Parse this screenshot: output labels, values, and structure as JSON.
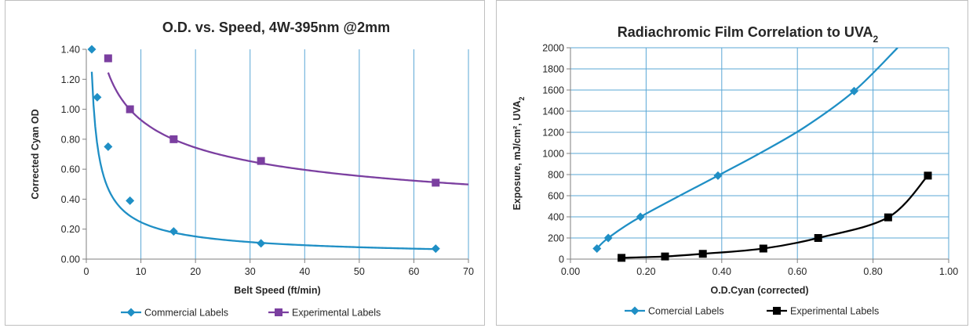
{
  "chart_data": [
    {
      "type": "line",
      "title": "O.D. vs. Speed, 4W-395nm @2mm",
      "xlabel": "Belt Speed (ft/min)",
      "ylabel": "Corrected Cyan OD",
      "xlim": [
        0,
        70
      ],
      "ylim": [
        0,
        1.4
      ],
      "xticks": [
        0,
        10,
        20,
        30,
        40,
        50,
        60,
        70
      ],
      "yticks": [
        0,
        0.2,
        0.4,
        0.6,
        0.8,
        1.0,
        1.2,
        1.4
      ],
      "x_tick_labels": [
        "0",
        "10",
        "20",
        "30",
        "40",
        "50",
        "60",
        "70"
      ],
      "y_tick_labels": [
        "0.00",
        "0.20",
        "0.40",
        "0.60",
        "0.80",
        "1.00",
        "1.20",
        "1.40"
      ],
      "grid": "vertical",
      "legend_position": "bottom",
      "series": [
        {
          "name": "Commercial Labels",
          "color": "#1f8fc5",
          "marker": "diamond",
          "x": [
            1,
            2,
            4,
            8,
            16,
            32,
            64
          ],
          "y": [
            1.4,
            1.08,
            0.75,
            0.39,
            0.185,
            0.105,
            0.07
          ],
          "trend": {
            "type": "power",
            "a": 1.25,
            "b": -0.705,
            "x_range": [
              1,
              64
            ]
          }
        },
        {
          "name": "Experimental Labels",
          "color": "#7b3fa0",
          "marker": "square",
          "x": [
            4,
            8,
            16,
            32,
            64
          ],
          "y": [
            1.34,
            1.0,
            0.8,
            0.655,
            0.51
          ],
          "trend": {
            "type": "power",
            "a": 1.94,
            "b": -0.32,
            "x_range": [
              4,
              70
            ]
          }
        }
      ]
    },
    {
      "type": "line",
      "title": "Radiachromic Film Correlation to UVA",
      "title_subscript": "2",
      "xlabel": "O.D.Cyan (corrected)",
      "ylabel": "Exposure, mJ/cm², UVA",
      "ylabel_subscript": "2",
      "xlim": [
        0,
        1.0
      ],
      "ylim": [
        0,
        2000
      ],
      "xticks": [
        0,
        0.2,
        0.4,
        0.6,
        0.8,
        1.0
      ],
      "yticks": [
        0,
        200,
        400,
        600,
        800,
        1000,
        1200,
        1400,
        1600,
        1800,
        2000
      ],
      "x_tick_labels": [
        "0.00",
        "0.20",
        "0.40",
        "0.60",
        "0.80",
        "1.00"
      ],
      "y_tick_labels": [
        "0",
        "200",
        "400",
        "600",
        "800",
        "1000",
        "1200",
        "1400",
        "1600",
        "1800",
        "2000"
      ],
      "grid": "both",
      "legend_position": "bottom",
      "series": [
        {
          "name": "Comercial Labels",
          "color": "#1f8fc5",
          "marker": "diamond",
          "x": [
            0.07,
            0.1,
            0.185,
            0.39,
            0.75
          ],
          "y": [
            100,
            200,
            400,
            790,
            1590
          ],
          "curve": [
            [
              0.07,
              100
            ],
            [
              0.1,
              200
            ],
            [
              0.185,
              400
            ],
            [
              0.39,
              790
            ],
            [
              0.5,
              1000
            ],
            [
              0.62,
              1250
            ],
            [
              0.75,
              1590
            ],
            [
              0.865,
              2000
            ]
          ]
        },
        {
          "name": "Experimental Labels",
          "color": "#000000",
          "marker": "square",
          "x": [
            0.135,
            0.25,
            0.35,
            0.51,
            0.655,
            0.84,
            0.945
          ],
          "y": [
            12,
            25,
            50,
            100,
            200,
            395,
            790
          ],
          "curve": [
            [
              0.135,
              12
            ],
            [
              0.25,
              25
            ],
            [
              0.35,
              50
            ],
            [
              0.51,
              100
            ],
            [
              0.655,
              200
            ],
            [
              0.84,
              395
            ],
            [
              0.945,
              790
            ]
          ]
        }
      ]
    }
  ]
}
